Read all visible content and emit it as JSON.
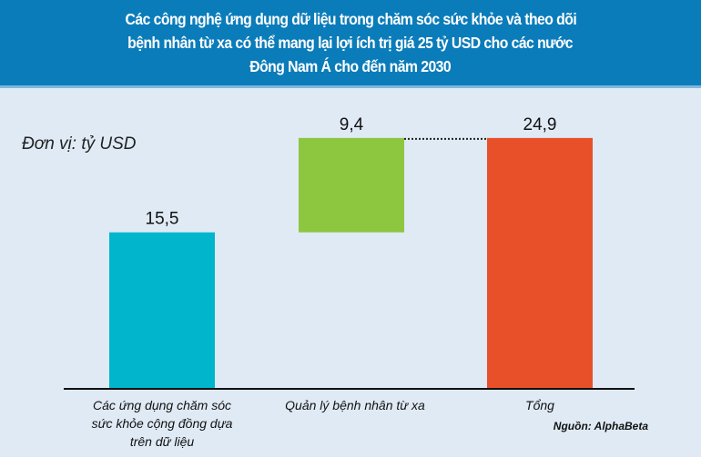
{
  "chart_data": {
    "type": "waterfall",
    "title_lines": [
      "Các công nghệ ứng dụng dữ liệu trong chăm sóc sức khỏe và theo dõi",
      "bệnh nhân từ xa có thể mang lại lợi ích trị giá 25 tỷ USD cho các nước",
      "Đông Nam Á cho đến năm 2030"
    ],
    "unit_label": "Đơn vị: tỷ USD",
    "categories": [
      [
        "Các ứng dụng chăm sóc",
        "sức khỏe cộng đồng dựa",
        "trên dữ liệu"
      ],
      [
        "Quản lý bệnh nhân từ xa"
      ],
      [
        "Tổng"
      ]
    ],
    "values": [
      15.5,
      9.4,
      24.9
    ],
    "value_labels": [
      "15,5",
      "9,4",
      "24,9"
    ],
    "bases": [
      0,
      15.5,
      0
    ],
    "colors": [
      "#00b5cc",
      "#8dc63f",
      "#e8502a"
    ],
    "ylim": [
      0,
      25
    ],
    "source": "Nguồn: AlphaBeta"
  }
}
